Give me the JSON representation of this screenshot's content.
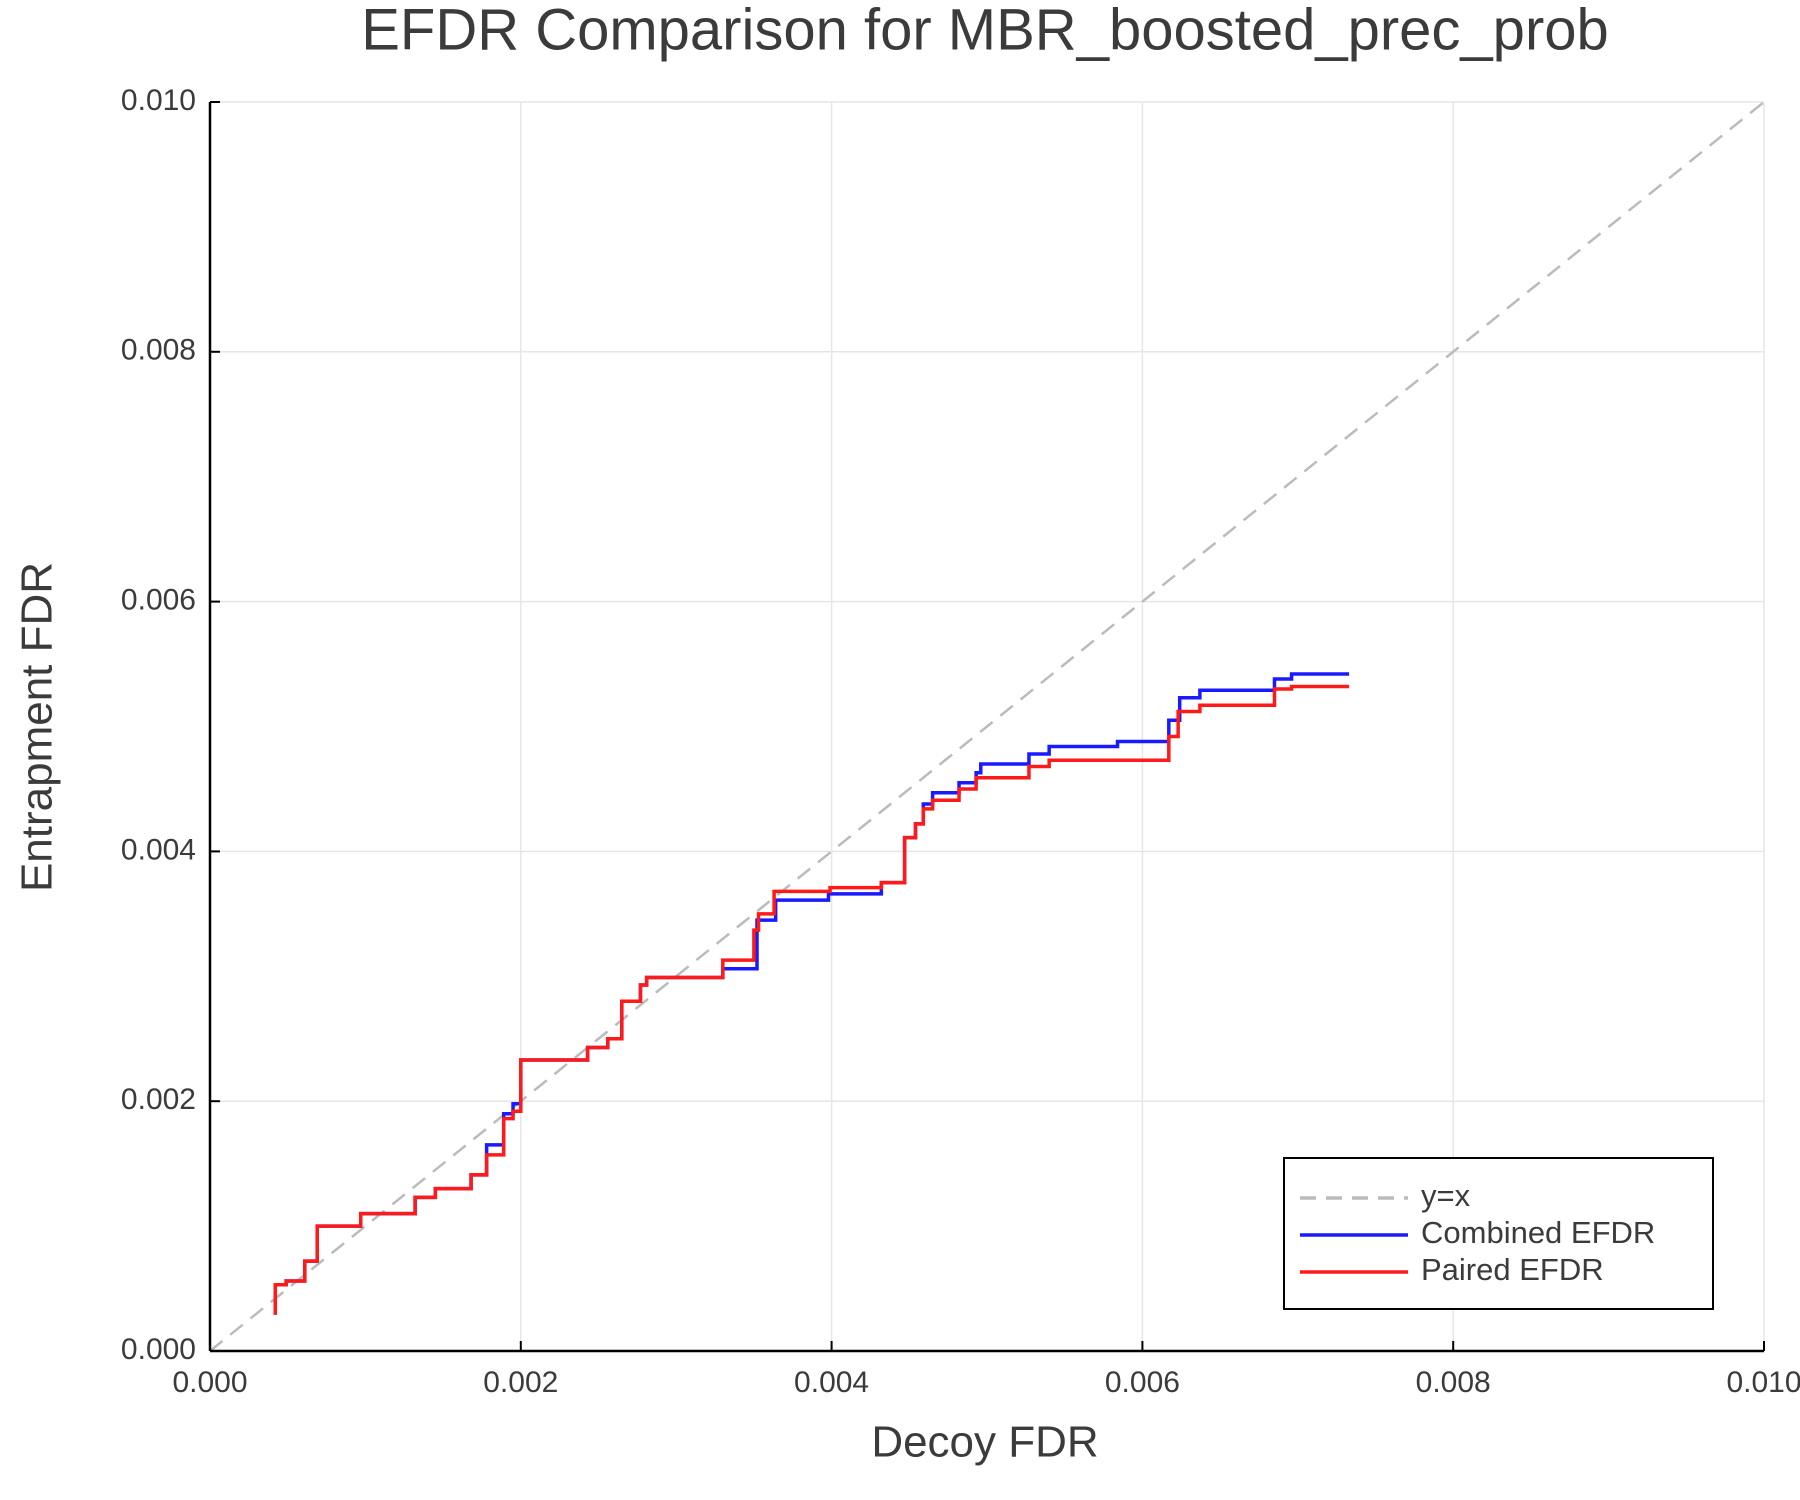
{
  "chart_data": {
    "type": "line",
    "title": "EFDR Comparison for MBR_boosted_prec_prob",
    "x_label": "Decoy FDR",
    "y_label": "Entrapment FDR",
    "xlim": [
      0,
      0.01
    ],
    "ylim": [
      0,
      0.01
    ],
    "xticks": [
      {
        "value": 0,
        "label": "0.000"
      },
      {
        "value": 0.002,
        "label": "0.002"
      },
      {
        "value": 0.004,
        "label": "0.004"
      },
      {
        "value": 0.006,
        "label": "0.006"
      },
      {
        "value": 0.008,
        "label": "0.008"
      },
      {
        "value": 0.01,
        "label": "0.010"
      }
    ],
    "yticks": [
      {
        "value": 0,
        "label": "0.000"
      },
      {
        "value": 0.002,
        "label": "0.002"
      },
      {
        "value": 0.004,
        "label": "0.004"
      },
      {
        "value": 0.006,
        "label": "0.006"
      },
      {
        "value": 0.008,
        "label": "0.008"
      },
      {
        "value": 0.01,
        "label": "0.010"
      }
    ],
    "grid": true,
    "legend": "lower right",
    "reference_line": {
      "name": "y=x",
      "color": "#bbbbbb",
      "dashed": true
    },
    "series": [
      {
        "name": "Combined EFDR",
        "color": "#1a1aff",
        "x": [
          0.00042,
          0.00042,
          0.00049,
          0.00049,
          0.00061,
          0.00061,
          0.00069,
          0.00069,
          0.00097,
          0.00097,
          0.00132,
          0.00132,
          0.00145,
          0.00145,
          0.00168,
          0.00168,
          0.00178,
          0.00178,
          0.00189,
          0.00189,
          0.00195,
          0.00195,
          0.002,
          0.002,
          0.00243,
          0.00243,
          0.00256,
          0.00256,
          0.00265,
          0.00265,
          0.00277,
          0.00277,
          0.00281,
          0.00281,
          0.0033,
          0.0033,
          0.00352,
          0.00352,
          0.00364,
          0.00364,
          0.00398,
          0.00398,
          0.00432,
          0.00432,
          0.00447,
          0.00447,
          0.00454,
          0.00454,
          0.00459,
          0.00459,
          0.00465,
          0.00465,
          0.00482,
          0.00482,
          0.00493,
          0.00493,
          0.00496,
          0.00496,
          0.00527,
          0.00527,
          0.0054,
          0.0054,
          0.00584,
          0.00584,
          0.00617,
          0.00617,
          0.00624,
          0.00624,
          0.00637,
          0.00637,
          0.00685,
          0.00685,
          0.00696,
          0.00696,
          0.00733
        ],
        "values": [
          0.00029,
          0.00053,
          0.00053,
          0.00056,
          0.00056,
          0.00072,
          0.00072,
          0.001,
          0.001,
          0.0011,
          0.0011,
          0.00123,
          0.00123,
          0.0013,
          0.0013,
          0.00141,
          0.00141,
          0.00165,
          0.00165,
          0.0019,
          0.0019,
          0.00198,
          0.00198,
          0.00233,
          0.00233,
          0.00243,
          0.00243,
          0.0025,
          0.0025,
          0.0028,
          0.0028,
          0.00293,
          0.00293,
          0.00299,
          0.00299,
          0.00306,
          0.00306,
          0.00345,
          0.00345,
          0.00361,
          0.00361,
          0.00366,
          0.00366,
          0.00375,
          0.00375,
          0.00411,
          0.00411,
          0.00422,
          0.00422,
          0.00438,
          0.00438,
          0.00447,
          0.00447,
          0.00455,
          0.00455,
          0.00463,
          0.00463,
          0.0047,
          0.0047,
          0.00478,
          0.00478,
          0.00484,
          0.00484,
          0.00488,
          0.00488,
          0.00505,
          0.00505,
          0.00523,
          0.00523,
          0.00529,
          0.00529,
          0.00538,
          0.00538,
          0.00542,
          0.00542
        ]
      },
      {
        "name": "Paired EFDR",
        "color": "#ff1a1a",
        "x": [
          0.00042,
          0.00042,
          0.00049,
          0.00049,
          0.00061,
          0.00061,
          0.00069,
          0.00069,
          0.00097,
          0.00097,
          0.00132,
          0.00132,
          0.00145,
          0.00145,
          0.00168,
          0.00168,
          0.00178,
          0.00178,
          0.00189,
          0.00189,
          0.00195,
          0.00195,
          0.002,
          0.002,
          0.00243,
          0.00243,
          0.00256,
          0.00256,
          0.00265,
          0.00265,
          0.00277,
          0.00277,
          0.00281,
          0.00281,
          0.0033,
          0.0033,
          0.0035,
          0.0035,
          0.00353,
          0.00353,
          0.00363,
          0.00363,
          0.00399,
          0.00399,
          0.00432,
          0.00432,
          0.00447,
          0.00447,
          0.00454,
          0.00454,
          0.00459,
          0.00459,
          0.00465,
          0.00465,
          0.00482,
          0.00482,
          0.00493,
          0.00493,
          0.00527,
          0.00527,
          0.0054,
          0.0054,
          0.00617,
          0.00617,
          0.00623,
          0.00623,
          0.00637,
          0.00637,
          0.00685,
          0.00685,
          0.00696,
          0.00696,
          0.00733
        ],
        "values": [
          0.00029,
          0.00053,
          0.00053,
          0.00056,
          0.00056,
          0.00072,
          0.00072,
          0.001,
          0.001,
          0.0011,
          0.0011,
          0.00123,
          0.00123,
          0.0013,
          0.0013,
          0.00141,
          0.00141,
          0.00157,
          0.00157,
          0.00186,
          0.00186,
          0.00192,
          0.00192,
          0.00233,
          0.00233,
          0.00243,
          0.00243,
          0.0025,
          0.0025,
          0.0028,
          0.0028,
          0.00293,
          0.00293,
          0.00299,
          0.00299,
          0.00313,
          0.00313,
          0.00337,
          0.00337,
          0.0035,
          0.0035,
          0.00368,
          0.00368,
          0.00371,
          0.00371,
          0.00375,
          0.00375,
          0.00411,
          0.00411,
          0.00422,
          0.00422,
          0.00434,
          0.00434,
          0.00441,
          0.00441,
          0.0045,
          0.0045,
          0.00459,
          0.00459,
          0.00468,
          0.00468,
          0.00473,
          0.00473,
          0.00492,
          0.00492,
          0.00512,
          0.00512,
          0.00517,
          0.00517,
          0.0053,
          0.0053,
          0.00532,
          0.00532
        ]
      }
    ]
  }
}
